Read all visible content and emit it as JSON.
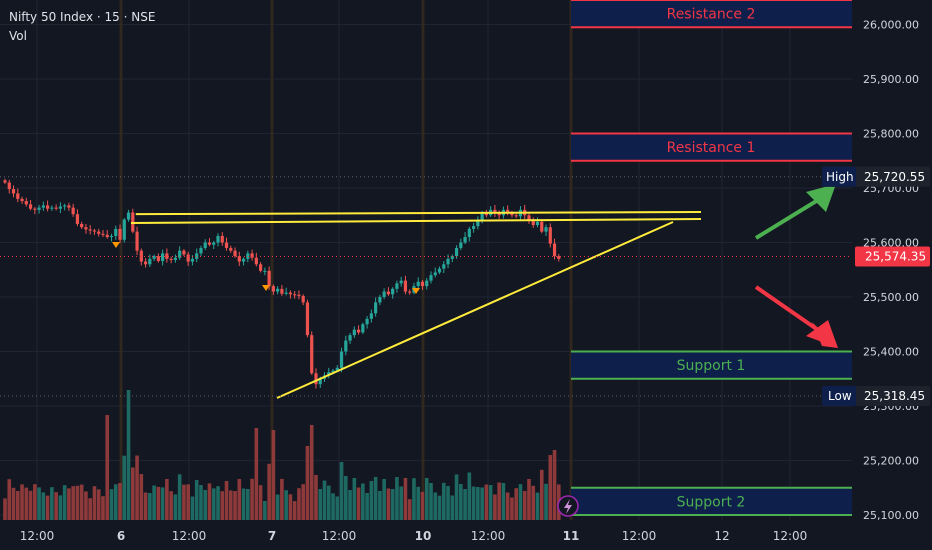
{
  "header": {
    "symbol_line": "Nifty 50 Index · 15 · NSE",
    "volume_label": "Vol"
  },
  "colors": {
    "background": "#131722",
    "up": "#26a69a",
    "down": "#ef5350",
    "vol_up": "#1e6a63",
    "vol_down": "#8e3a3a",
    "resistance_line": "#f23645",
    "support_line": "#4caf50",
    "zone_fill": "#0d1f4a",
    "trend_line": "#ffeb3b",
    "last_price_bg": "#f23645",
    "arrow_up": "#4caf50",
    "arrow_down": "#f23645"
  },
  "chart_data": {
    "type": "candlestick",
    "title": "Nifty 50 Index · 15 · NSE",
    "y_axis_ticks": [
      25100,
      25200,
      25300,
      25400,
      25500,
      25600,
      25700,
      25800,
      25900,
      26000
    ],
    "y_axis_tick_labels": [
      "25,100.00",
      "25,200.00",
      "25,300.00",
      "25,400.00",
      "25,500.00",
      "25,600.00",
      "25,700.00",
      "25,800.00",
      "25,900.00",
      "26,000.00"
    ],
    "x_axis_tick_labels": [
      "12:00",
      "6",
      "12:00",
      "7",
      "12:00",
      "10",
      "12:00",
      "11",
      "12:00",
      "12",
      "12:00"
    ],
    "session_starts": [
      "6",
      "7",
      "10",
      "11"
    ],
    "last_price": {
      "label": "25,574.35",
      "value": 25574.35
    },
    "high": {
      "tag": "High",
      "label": "25,720.55",
      "value": 25720.55
    },
    "low": {
      "tag": "Low",
      "label": "25,318.45",
      "value": 25318.45
    },
    "levels": [
      {
        "name": "Resistance 2",
        "value_top": 26045,
        "value_bottom": 25995,
        "kind": "resistance"
      },
      {
        "name": "Resistance 1",
        "value_top": 25800,
        "value_bottom": 25750,
        "kind": "resistance"
      },
      {
        "name": "Support 1",
        "value_top": 25400,
        "value_bottom": 25350,
        "kind": "support"
      },
      {
        "name": "Support 2",
        "value_top": 25150,
        "value_bottom": 25100,
        "kind": "support"
      }
    ],
    "pattern": {
      "type": "ascending triangle",
      "resistance_line": [
        {
          "bar": 3,
          "price": 25652
        },
        {
          "bar": 171,
          "price": 25656
        }
      ],
      "support_line": [
        {
          "bar": 70,
          "price": 25324
        },
        {
          "bar": 165,
          "price": 25645
        }
      ]
    },
    "markers": [
      {
        "bar": 27,
        "price": 25630
      },
      {
        "bar": 62,
        "price": 25525
      },
      {
        "bar": 97,
        "price": 25522
      }
    ],
    "candles_close": [
      25710,
      25698,
      25690,
      25680,
      25676,
      25670,
      25662,
      25660,
      25664,
      25668,
      25662,
      25664,
      25662,
      25666,
      25668,
      25664,
      25652,
      25634,
      25628,
      25624,
      25622,
      25620,
      25616,
      25614,
      25610,
      25612,
      25625,
      25605,
      25642,
      25655,
      25620,
      25585,
      25565,
      25560,
      25570,
      25575,
      25566,
      25580,
      25570,
      25568,
      25572,
      25585,
      25578,
      25565,
      25570,
      25580,
      25590,
      25600,
      25596,
      25600,
      25612,
      25600,
      25590,
      25585,
      25575,
      25565,
      25570,
      25580,
      25572,
      25560,
      25548,
      25548,
      25520,
      25510,
      25515,
      25506,
      25508,
      25505,
      25504,
      25502,
      25490,
      25430,
      25360,
      25340,
      25350,
      25356,
      25362,
      25365,
      25370,
      25400,
      25420,
      25430,
      25440,
      25435,
      25450,
      25460,
      25470,
      25490,
      25500,
      25510,
      25505,
      25515,
      25525,
      25530,
      25510,
      25508,
      25520,
      25528,
      25520,
      25530,
      25540,
      25545,
      25552,
      25560,
      25570,
      25575,
      25590,
      25600,
      25610,
      25625,
      25630,
      25640,
      25655,
      25650,
      25660,
      25655,
      25650,
      25660,
      25655,
      25650,
      25648,
      25660,
      25650,
      25640,
      25632,
      25638,
      25620,
      25628,
      25598,
      25575,
      25570
    ]
  }
}
